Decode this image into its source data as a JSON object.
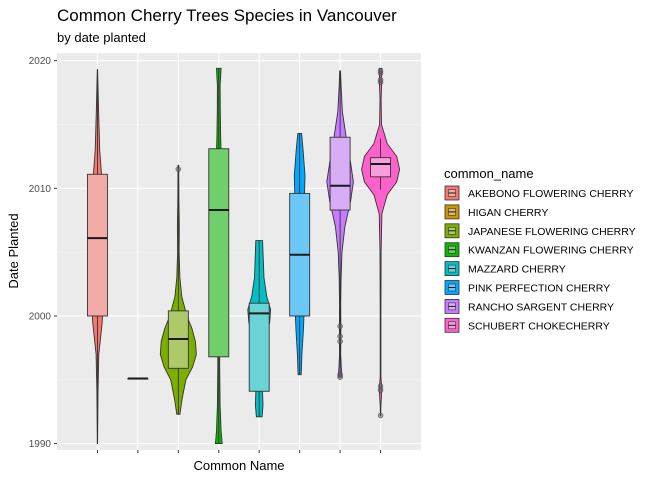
{
  "chart_data": {
    "type": "violin+boxplot",
    "title": "Common Cherry Trees Species in Vancouver",
    "subtitle": "by date planted",
    "xlabel": "Common Name",
    "ylabel": "Date Planted",
    "ylim": [
      1989.5,
      2020.6
    ],
    "yticks": [
      1990,
      2000,
      2010,
      2020
    ],
    "grid": true,
    "legend": {
      "title": "common_name",
      "position": "right",
      "entries": [
        "AKEBONO FLOWERING CHERRY",
        "HIGAN CHERRY",
        "JAPANESE FLOWERING CHERRY",
        "KWANZAN FLOWERING CHERRY",
        "MAZZARD CHERRY",
        "PINK PERFECTION CHERRY",
        "RANCHO SARGENT CHERRY",
        "SCHUBERT CHOKECHERRY"
      ]
    },
    "series": [
      {
        "name": "AKEBONO FLOWERING CHERRY",
        "color": "#F8766D",
        "box": {
          "q1": 2000,
          "median": 2006.1,
          "q3": 2011.1,
          "lower": 1990.0,
          "upper": 2019.3
        },
        "violin": {
          "ymin": 1990.0,
          "ymax": 2019.3,
          "profile": [
            [
              1990.0,
              0.01
            ],
            [
              1994,
              0.03
            ],
            [
              1997,
              0.07
            ],
            [
              1999.5,
              0.25
            ],
            [
              2001,
              0.3
            ],
            [
              2003,
              0.36
            ],
            [
              2005,
              0.32
            ],
            [
              2007,
              0.22
            ],
            [
              2009,
              0.38
            ],
            [
              2011,
              0.22
            ],
            [
              2013,
              0.12
            ],
            [
              2016,
              0.06
            ],
            [
              2019.3,
              0.01
            ]
          ]
        },
        "outliers": []
      },
      {
        "name": "HIGAN CHERRY",
        "color": "#CD9600",
        "box": {
          "q1": 1995.1,
          "median": 1995.1,
          "q3": 1995.1,
          "lower": 1995.1,
          "upper": 1995.1
        },
        "violin": null,
        "outliers": []
      },
      {
        "name": "JAPANESE FLOWERING CHERRY",
        "color": "#7CAE00",
        "box": {
          "q1": 1995.9,
          "median": 1998.2,
          "q3": 2000.4,
          "lower": 1992.3,
          "upper": 2011.8
        },
        "violin": {
          "ymin": 1992.3,
          "ymax": 2011.8,
          "profile": [
            [
              1992.3,
              0.08
            ],
            [
              1993.5,
              0.2
            ],
            [
              1995,
              0.4
            ],
            [
              1996,
              0.75
            ],
            [
              1997,
              0.95
            ],
            [
              1998,
              0.9
            ],
            [
              1999,
              0.72
            ],
            [
              2000,
              0.45
            ],
            [
              2001.5,
              0.18
            ],
            [
              2003,
              0.08
            ],
            [
              2005,
              0.04
            ],
            [
              2007,
              0.05
            ],
            [
              2009,
              0.03
            ],
            [
              2011.8,
              0.02
            ]
          ]
        },
        "outliers": [
          2011.5
        ]
      },
      {
        "name": "KWANZAN FLOWERING CHERRY",
        "color": "#0CB702",
        "box": {
          "q1": 1996.8,
          "median": 2008.3,
          "q3": 2013.1,
          "lower": 1990.0,
          "upper": 2019.4
        },
        "violin": {
          "ymin": 1990.0,
          "ymax": 2019.4,
          "profile": [
            [
              1990.0,
              0.18
            ],
            [
              1991,
              0.12
            ],
            [
              1993,
              0.07
            ],
            [
              1996,
              0.05
            ],
            [
              1999,
              0.05
            ],
            [
              2002,
              0.08
            ],
            [
              2005,
              0.12
            ],
            [
              2007,
              0.2
            ],
            [
              2008.5,
              0.28
            ],
            [
              2010,
              0.22
            ],
            [
              2012,
              0.14
            ],
            [
              2014,
              0.1
            ],
            [
              2016,
              0.08
            ],
            [
              2018,
              0.07
            ],
            [
              2019.4,
              0.12
            ]
          ]
        },
        "outliers": []
      },
      {
        "name": "MAZZARD CHERRY",
        "color": "#00BFC4",
        "box": {
          "q1": 1994.1,
          "median": 2000.2,
          "q3": 2001.0,
          "lower": 1992.1,
          "upper": 2005.9
        },
        "violin": {
          "ymin": 1992.1,
          "ymax": 2005.9,
          "profile": [
            [
              1992.1,
              0.15
            ],
            [
              1993,
              0.2
            ],
            [
              1994,
              0.18
            ],
            [
              1996,
              0.18
            ],
            [
              1998,
              0.3
            ],
            [
              1999.5,
              0.55
            ],
            [
              2000.5,
              0.6
            ],
            [
              2001.5,
              0.4
            ],
            [
              2003,
              0.25
            ],
            [
              2005,
              0.2
            ],
            [
              2005.9,
              0.18
            ]
          ]
        },
        "outliers": []
      },
      {
        "name": "PINK PERFECTION CHERRY",
        "color": "#00A9FF",
        "box": {
          "q1": 2000.0,
          "median": 2004.8,
          "q3": 2009.6,
          "lower": 1995.4,
          "upper": 2014.3
        },
        "violin": {
          "ymin": 1995.4,
          "ymax": 2014.3,
          "profile": [
            [
              1995.4,
              0.08
            ],
            [
              1997,
              0.12
            ],
            [
              1999,
              0.2
            ],
            [
              2001,
              0.25
            ],
            [
              2003,
              0.3
            ],
            [
              2005,
              0.42
            ],
            [
              2007,
              0.3
            ],
            [
              2009,
              0.25
            ],
            [
              2011,
              0.28
            ],
            [
              2013,
              0.18
            ],
            [
              2014.3,
              0.1
            ]
          ]
        },
        "outliers": []
      },
      {
        "name": "RANCHO SARGENT CHERRY",
        "color": "#C77CFF",
        "box": {
          "q1": 2008.3,
          "median": 2010.2,
          "q3": 2014.0,
          "lower": 1995.2,
          "upper": 2019.2
        },
        "violin": {
          "ymin": 1995.2,
          "ymax": 2019.2,
          "profile": [
            [
              1995.2,
              0.1
            ],
            [
              1996,
              0.06
            ],
            [
              1997,
              0.03
            ],
            [
              1999,
              0.04
            ],
            [
              2001,
              0.03
            ],
            [
              2003,
              0.05
            ],
            [
              2005,
              0.1
            ],
            [
              2007,
              0.25
            ],
            [
              2009,
              0.55
            ],
            [
              2010.5,
              0.7
            ],
            [
              2012,
              0.55
            ],
            [
              2014,
              0.32
            ],
            [
              2016,
              0.12
            ],
            [
              2018,
              0.05
            ],
            [
              2019.2,
              0.02
            ]
          ]
        },
        "outliers": [
          1999.2,
          1998.4,
          1998.0,
          1995.4,
          1995.2
        ]
      },
      {
        "name": "SCHUBERT CHOKECHERRY",
        "color": "#FF61CC",
        "box": {
          "q1": 2010.9,
          "median": 2011.9,
          "q3": 2012.4,
          "lower": 2009.9,
          "upper": 2013.9
        },
        "violin": {
          "ymin": 1992.2,
          "ymax": 2019.4,
          "profile": [
            [
              1992.2,
              0.01
            ],
            [
              1993,
              0.02
            ],
            [
              1994.3,
              0.07
            ],
            [
              1995.2,
              0.02
            ],
            [
              2000,
              0.02
            ],
            [
              2005,
              0.03
            ],
            [
              2008,
              0.07
            ],
            [
              2009.5,
              0.35
            ],
            [
              2010.5,
              0.85
            ],
            [
              2011.5,
              1.0
            ],
            [
              2012.5,
              0.85
            ],
            [
              2013.5,
              0.35
            ],
            [
              2015,
              0.05
            ],
            [
              2017,
              0.03
            ],
            [
              2018.3,
              0.06
            ],
            [
              2019,
              0.05
            ],
            [
              2019.4,
              0.07
            ]
          ]
        },
        "outliers": [
          1992.2,
          1994.2,
          1994.5,
          2018.3,
          2018.5,
          2019.0,
          2019.2
        ]
      }
    ]
  }
}
